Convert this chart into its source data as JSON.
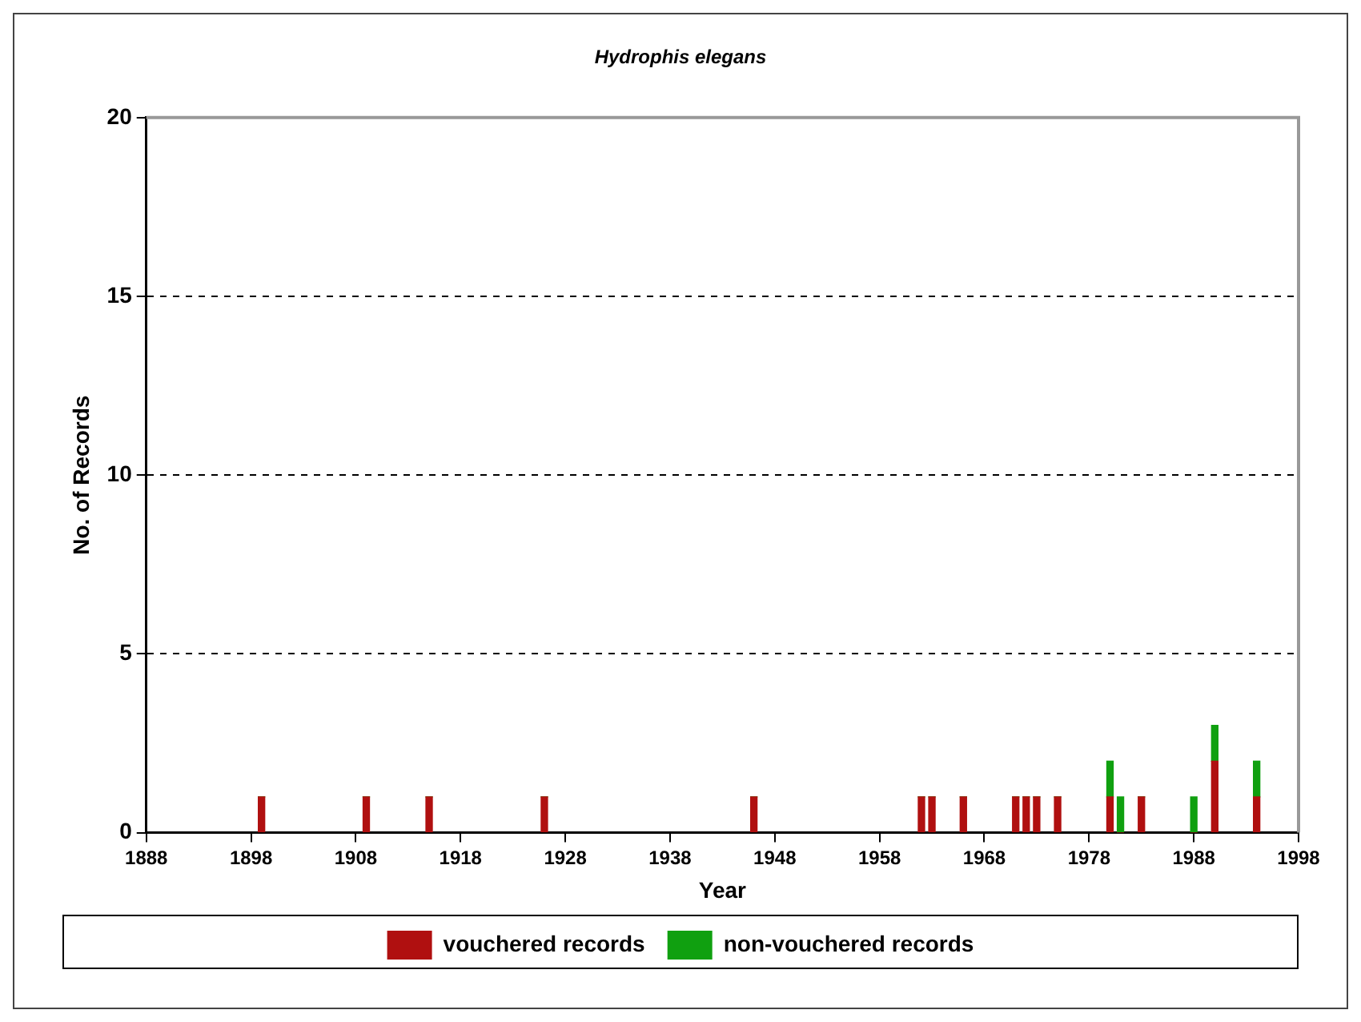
{
  "chart_data": {
    "type": "bar",
    "stacked": true,
    "title": "Hydrophis elegans",
    "xlabel": "Year",
    "ylabel": "No. of Records",
    "x": [
      1899,
      1909,
      1915,
      1926,
      1946,
      1962,
      1963,
      1966,
      1971,
      1972,
      1973,
      1975,
      1980,
      1981,
      1983,
      1988,
      1990,
      1994
    ],
    "series": [
      {
        "name": "vouchered records",
        "color": "#b01010",
        "values": [
          1,
          1,
          1,
          1,
          1,
          1,
          1,
          1,
          1,
          1,
          1,
          1,
          1,
          0,
          1,
          0,
          2,
          1
        ]
      },
      {
        "name": "non-vouchered records",
        "color": "#10a010",
        "values": [
          0,
          0,
          0,
          0,
          0,
          0,
          0,
          0,
          0,
          0,
          0,
          0,
          1,
          1,
          0,
          1,
          1,
          1
        ]
      }
    ],
    "xlim": [
      1888,
      1998
    ],
    "xticks": [
      1888,
      1898,
      1908,
      1918,
      1928,
      1938,
      1948,
      1958,
      1968,
      1978,
      1988,
      1998
    ],
    "ylim": [
      0,
      20
    ],
    "yticks": [
      0,
      5,
      10,
      15,
      20
    ],
    "grid": "y",
    "legend": "bottom"
  }
}
